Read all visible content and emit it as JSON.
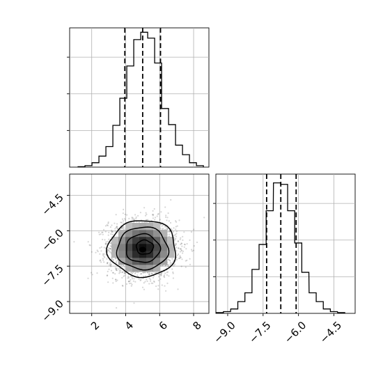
{
  "chart_data": {
    "type": "corner",
    "parameters": [
      {
        "range": [
          0.7,
          8.9
        ],
        "tick_values": [
          2,
          4,
          6,
          8
        ],
        "tick_labels": [
          "2",
          "4",
          "6",
          "8"
        ],
        "quantiles": [
          3.95,
          5.0,
          6.05
        ],
        "histogram": {
          "bin_centers": [
            1.4,
            1.81,
            2.22,
            2.63,
            3.04,
            3.45,
            3.86,
            4.27,
            4.68,
            5.09,
            5.5,
            5.91,
            6.32,
            6.73,
            7.14,
            7.55,
            7.96,
            8.37
          ],
          "counts": [
            0.003,
            0.01,
            0.03,
            0.075,
            0.14,
            0.285,
            0.47,
            0.69,
            0.87,
            0.92,
            0.88,
            0.71,
            0.4,
            0.29,
            0.15,
            0.085,
            0.03,
            0.01
          ]
        }
      },
      {
        "range": [
          -9.5,
          -3.6
        ],
        "tick_values": [
          -9.0,
          -7.5,
          -6.0,
          -4.5
        ],
        "tick_labels": [
          "−9.0",
          "−7.5",
          "−6.0",
          "−4.5"
        ],
        "quantiles": [
          -7.35,
          -6.75,
          -6.1
        ],
        "histogram": {
          "bin_centers": [
            -9.33,
            -9.03,
            -8.72,
            -8.42,
            -8.12,
            -7.82,
            -7.52,
            -7.22,
            -6.91,
            -6.61,
            -6.31,
            -6.01,
            -5.71,
            -5.4,
            -5.1,
            -4.8,
            -4.5,
            -4.19
          ],
          "counts": [
            0.005,
            0.012,
            0.03,
            0.08,
            0.14,
            0.3,
            0.47,
            0.7,
            0.89,
            0.88,
            0.7,
            0.48,
            0.28,
            0.14,
            0.08,
            0.03,
            0.012,
            0.005
          ]
        }
      }
    ],
    "joint": {
      "center": [
        5.0,
        -6.75
      ],
      "std": [
        1.0,
        0.6
      ],
      "contour_levels": [
        0.5,
        1.0,
        1.5,
        2.0
      ],
      "sample_count": 2600
    },
    "quantile_line_style": "dashed",
    "grid": true
  }
}
